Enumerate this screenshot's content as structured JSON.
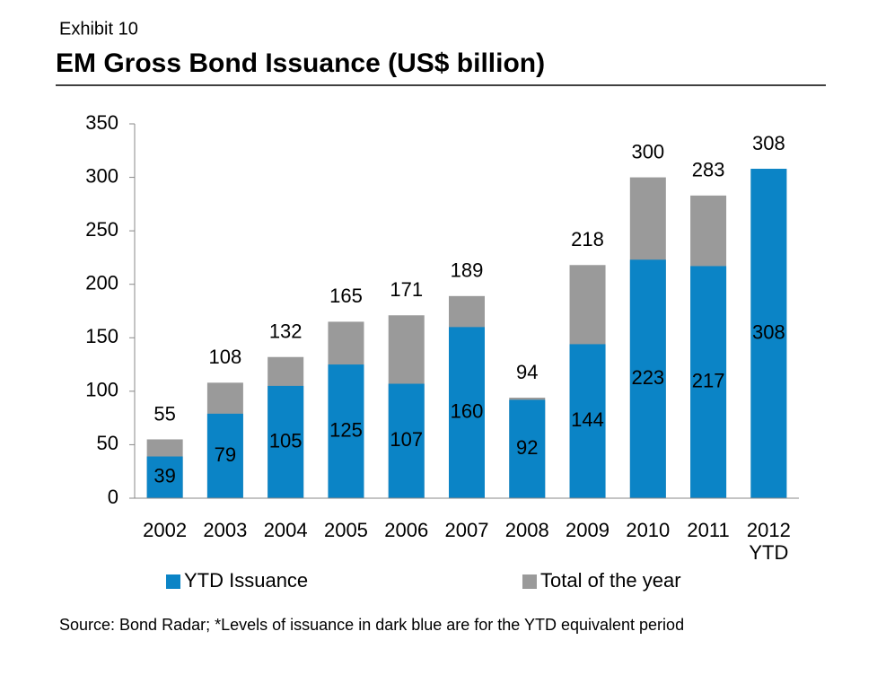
{
  "exhibit": "Exhibit 10",
  "chart_data": {
    "type": "overlap-bar",
    "title": "EM Gross Bond Issuance (US$ billion)",
    "categories": [
      "2002",
      "2003",
      "2004",
      "2005",
      "2006",
      "2007",
      "2008",
      "2009",
      "2010",
      "2011",
      "2012 YTD"
    ],
    "series": [
      {
        "name": "YTD Issuance",
        "color": "#0b84c6",
        "values": [
          39,
          79,
          105,
          125,
          107,
          160,
          92,
          144,
          223,
          217,
          308
        ]
      },
      {
        "name": "Total of the year",
        "color": "#9a9a9a",
        "values": [
          55,
          108,
          132,
          165,
          171,
          189,
          94,
          218,
          300,
          283,
          308
        ]
      }
    ],
    "ylim": [
      0,
      350
    ],
    "yticks": [
      0,
      50,
      100,
      150,
      200,
      250,
      300,
      350
    ],
    "grid": false,
    "source": "Source: Bond Radar; *Levels of issuance in dark blue are for the YTD equivalent period"
  }
}
